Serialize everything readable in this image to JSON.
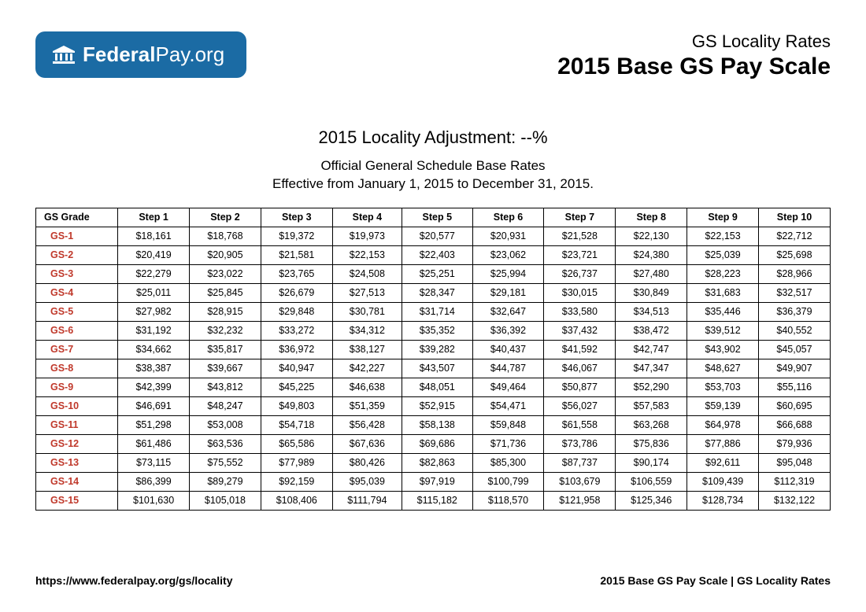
{
  "logo": {
    "bold": "Federal",
    "light": "Pay.org"
  },
  "title": {
    "sub": "GS Locality Rates",
    "main": "2015 Base GS Pay Scale"
  },
  "adjustment": "2015 Locality Adjustment: --%",
  "description_line1": "Official General Schedule Base Rates",
  "description_line2": "Effective from January 1, 2015 to December 31, 2015.",
  "columns": [
    "GS Grade",
    "Step 1",
    "Step 2",
    "Step 3",
    "Step 4",
    "Step 5",
    "Step 6",
    "Step 7",
    "Step 8",
    "Step 9",
    "Step 10"
  ],
  "rows": [
    {
      "grade": "GS-1",
      "cells": [
        "$18,161",
        "$18,768",
        "$19,372",
        "$19,973",
        "$20,577",
        "$20,931",
        "$21,528",
        "$22,130",
        "$22,153",
        "$22,712"
      ]
    },
    {
      "grade": "GS-2",
      "cells": [
        "$20,419",
        "$20,905",
        "$21,581",
        "$22,153",
        "$22,403",
        "$23,062",
        "$23,721",
        "$24,380",
        "$25,039",
        "$25,698"
      ]
    },
    {
      "grade": "GS-3",
      "cells": [
        "$22,279",
        "$23,022",
        "$23,765",
        "$24,508",
        "$25,251",
        "$25,994",
        "$26,737",
        "$27,480",
        "$28,223",
        "$28,966"
      ]
    },
    {
      "grade": "GS-4",
      "cells": [
        "$25,011",
        "$25,845",
        "$26,679",
        "$27,513",
        "$28,347",
        "$29,181",
        "$30,015",
        "$30,849",
        "$31,683",
        "$32,517"
      ]
    },
    {
      "grade": "GS-5",
      "cells": [
        "$27,982",
        "$28,915",
        "$29,848",
        "$30,781",
        "$31,714",
        "$32,647",
        "$33,580",
        "$34,513",
        "$35,446",
        "$36,379"
      ]
    },
    {
      "grade": "GS-6",
      "cells": [
        "$31,192",
        "$32,232",
        "$33,272",
        "$34,312",
        "$35,352",
        "$36,392",
        "$37,432",
        "$38,472",
        "$39,512",
        "$40,552"
      ]
    },
    {
      "grade": "GS-7",
      "cells": [
        "$34,662",
        "$35,817",
        "$36,972",
        "$38,127",
        "$39,282",
        "$40,437",
        "$41,592",
        "$42,747",
        "$43,902",
        "$45,057"
      ]
    },
    {
      "grade": "GS-8",
      "cells": [
        "$38,387",
        "$39,667",
        "$40,947",
        "$42,227",
        "$43,507",
        "$44,787",
        "$46,067",
        "$47,347",
        "$48,627",
        "$49,907"
      ]
    },
    {
      "grade": "GS-9",
      "cells": [
        "$42,399",
        "$43,812",
        "$45,225",
        "$46,638",
        "$48,051",
        "$49,464",
        "$50,877",
        "$52,290",
        "$53,703",
        "$55,116"
      ]
    },
    {
      "grade": "GS-10",
      "cells": [
        "$46,691",
        "$48,247",
        "$49,803",
        "$51,359",
        "$52,915",
        "$54,471",
        "$56,027",
        "$57,583",
        "$59,139",
        "$60,695"
      ]
    },
    {
      "grade": "GS-11",
      "cells": [
        "$51,298",
        "$53,008",
        "$54,718",
        "$56,428",
        "$58,138",
        "$59,848",
        "$61,558",
        "$63,268",
        "$64,978",
        "$66,688"
      ]
    },
    {
      "grade": "GS-12",
      "cells": [
        "$61,486",
        "$63,536",
        "$65,586",
        "$67,636",
        "$69,686",
        "$71,736",
        "$73,786",
        "$75,836",
        "$77,886",
        "$79,936"
      ]
    },
    {
      "grade": "GS-13",
      "cells": [
        "$73,115",
        "$75,552",
        "$77,989",
        "$80,426",
        "$82,863",
        "$85,300",
        "$87,737",
        "$90,174",
        "$92,611",
        "$95,048"
      ]
    },
    {
      "grade": "GS-14",
      "cells": [
        "$86,399",
        "$89,279",
        "$92,159",
        "$95,039",
        "$97,919",
        "$100,799",
        "$103,679",
        "$106,559",
        "$109,439",
        "$112,319"
      ]
    },
    {
      "grade": "GS-15",
      "cells": [
        "$101,630",
        "$105,018",
        "$108,406",
        "$111,794",
        "$115,182",
        "$118,570",
        "$121,958",
        "$125,346",
        "$128,734",
        "$132,122"
      ]
    }
  ],
  "footer": {
    "left": "https://www.federalpay.org/gs/locality",
    "right": "2015 Base GS Pay Scale | GS Locality Rates"
  },
  "styling": {
    "logo_bg": "#1b6ba4",
    "grade_color": "#c0392b",
    "border_color": "#000000",
    "background": "#ffffff"
  }
}
